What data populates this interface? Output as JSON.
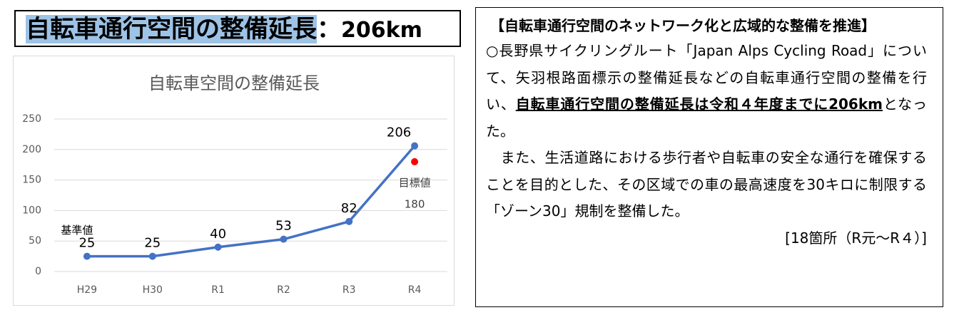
{
  "heading": {
    "highlight": "自転車通行空間の整備延長",
    "colon": "：",
    "amount": "206km"
  },
  "chart_data": {
    "type": "line",
    "title": "自転車空間の整備延長",
    "categories": [
      "H29",
      "H30",
      "R1",
      "R2",
      "R3",
      "R4"
    ],
    "values": [
      25,
      25,
      40,
      53,
      82,
      206
    ],
    "color": "#4472c4",
    "ylim": [
      0,
      250
    ],
    "yticks": [
      0,
      50,
      100,
      150,
      200,
      250
    ],
    "grid": true,
    "baseline_note": "基準値",
    "target": {
      "name": "目標値",
      "value": 180,
      "color": "#ff0000"
    }
  },
  "text_box": {
    "title": "【自転車通行空間のネットワーク化と広域的な整備を推進】",
    "paragraph1": {
      "before": "○長野県サイクリングルート「Japan Alps Cycling Road」について、矢羽根路面標示の整備延長などの自転車通行空間の整備を行い、",
      "emphasis": "自転車通行空間の整備延長は令和４年度までに206km",
      "after": "となった。"
    },
    "paragraph2": "　また、生活道路における歩行者や自転車の安全な通行を確保することを目的とした、その区域での車の最高速度を30キロに制限する「ゾーン30」規制を整備した。",
    "note": "[18箇所（R元～R４）]"
  }
}
